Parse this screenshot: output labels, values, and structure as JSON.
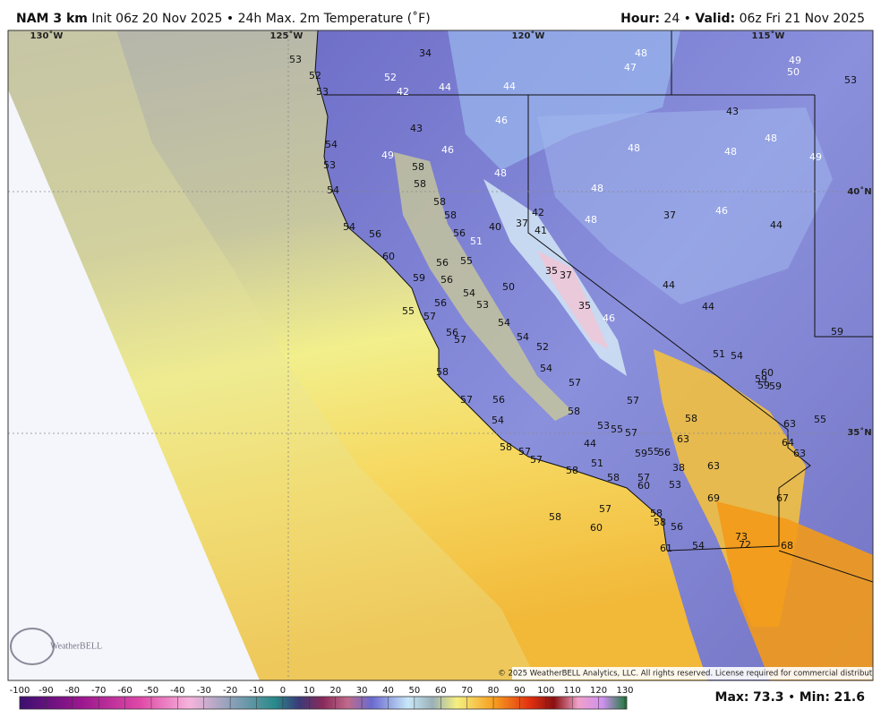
{
  "header": {
    "model": "NAM 3 km",
    "description": "Init 06z 20 Nov 2025 • 24h Max. 2m Temperature (˚F)",
    "hour_label": "Hour:",
    "hour_value": "24 •",
    "valid_label": "Valid:",
    "valid_value": "06z Fri 21 Nov 2025"
  },
  "map": {
    "grid_labels": [
      "130˚W",
      "125˚W",
      "120˚W",
      "115˚W",
      "40˚N",
      "35˚N"
    ],
    "values": [
      53,
      34,
      52,
      52,
      53,
      42,
      44,
      44,
      48,
      47,
      49,
      50,
      53,
      43,
      46,
      43,
      54,
      49,
      46,
      48,
      48,
      48,
      49,
      53,
      58,
      48,
      54,
      58,
      48,
      58,
      58,
      42,
      37,
      40,
      41,
      48,
      37,
      46,
      44,
      54,
      56,
      56,
      51,
      60,
      56,
      55,
      35,
      37,
      59,
      56,
      50,
      54,
      44,
      55,
      57,
      56,
      53,
      35,
      46,
      44,
      54,
      56,
      57,
      54,
      52,
      59,
      51,
      54,
      54,
      58,
      57,
      60,
      59,
      59,
      59,
      57,
      56,
      57,
      58,
      58,
      54,
      53,
      55,
      57,
      63,
      55,
      63,
      44,
      64,
      58,
      57,
      59,
      55,
      56,
      63,
      57,
      51,
      58,
      38,
      63,
      58,
      57,
      60,
      53,
      69,
      67,
      57,
      58,
      58,
      58,
      56,
      60,
      73,
      72,
      68,
      61,
      54
    ],
    "copyright": "© 2025 WeatherBELL Analytics, LLC. All rights reserved. License required for commercial distribution.",
    "logo": "WeatherBELL"
  },
  "colorbar": {
    "ticks": [
      -100,
      -90,
      -80,
      -70,
      -60,
      -50,
      -40,
      -30,
      -20,
      -10,
      0,
      10,
      20,
      30,
      40,
      50,
      60,
      70,
      80,
      90,
      100,
      110,
      120,
      130
    ]
  },
  "stats": {
    "max_label": "Max:",
    "max": 73.3,
    "separator": "•",
    "min_label": "Min:",
    "min": 21.6
  }
}
